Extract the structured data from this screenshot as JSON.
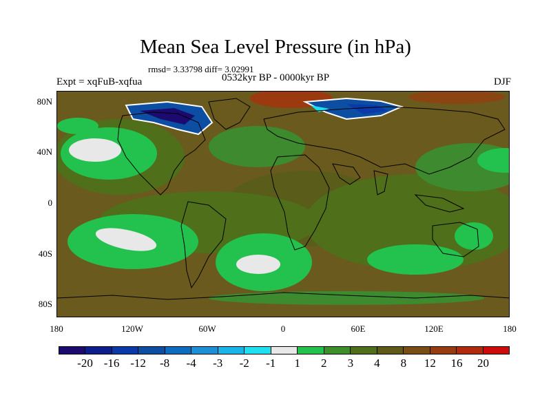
{
  "title": "Mean Sea Level Pressure (in hPa)",
  "stats": "rmsd= 3.33798 diff= 3.02991",
  "period": "0532kyr BP - 0000kyr BP",
  "experiment": "Expt = xqFuB-xqfua",
  "season": "DJF",
  "lat_ticks": [
    "80N",
    "40N",
    "0",
    "40S",
    "80S"
  ],
  "lon_ticks": [
    "180",
    "120W",
    "60W",
    "0",
    "60E",
    "120E",
    "180"
  ],
  "colors": {
    "background": "#6b5a1e",
    "positive_mid": "#4f6f1a",
    "positive_low": "#3e8a2e",
    "green_band": "#23c24e",
    "near_zero": "#e8e8e8",
    "negative": "#0b4ea2",
    "high": "#9a3a0e"
  },
  "legend": {
    "labels": [
      "-20",
      "-16",
      "-12",
      "-8",
      "-4",
      "-3",
      "-2",
      "-1",
      "1",
      "2",
      "3",
      "4",
      "8",
      "12",
      "16",
      "20"
    ],
    "colors": [
      "#1c0a6e",
      "#0b1e8c",
      "#0b3aa8",
      "#0b4ea2",
      "#0b6cc0",
      "#1d8fd6",
      "#19b4e8",
      "#1ee0f0",
      "#e8e8e8",
      "#23c24e",
      "#3d8f2a",
      "#4f6f1a",
      "#5f5a17",
      "#7a4d14",
      "#963c10",
      "#b22a0c",
      "#cc0c0c"
    ]
  }
}
